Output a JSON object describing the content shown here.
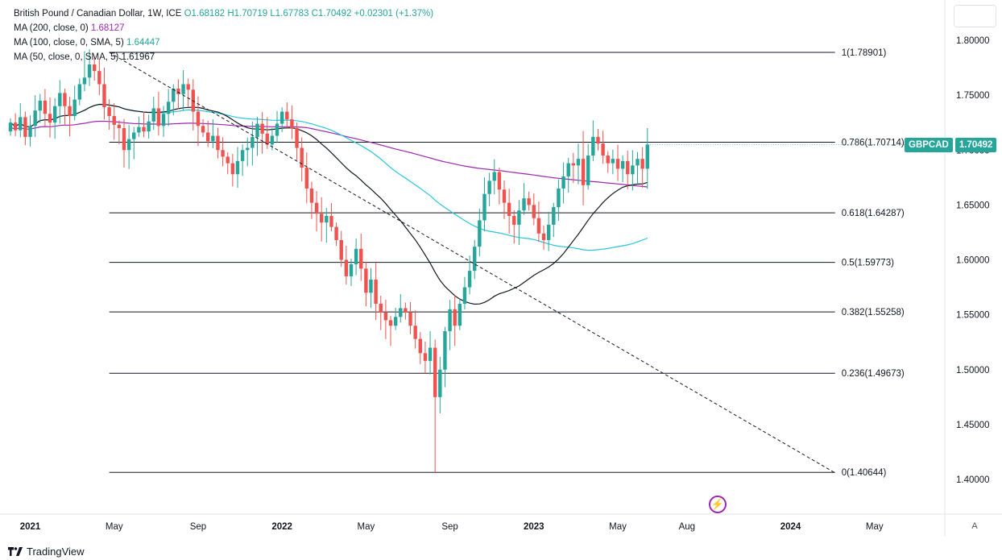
{
  "legend": {
    "title": "British Pound / Canadian Dollar, 1W, ICE",
    "open": "O1.68182",
    "high": "H1.70719",
    "low": "L1.67783",
    "close": "C1.70492",
    "change": "+0.02301 (+1.37%)",
    "ma200_label": "MA (200, close, 0)",
    "ma200_value": "1.68127",
    "ma100_label": "MA (100, close, 0, SMA, 5)",
    "ma100_value": "1.64447",
    "ma50_label": "MA (50, close, 0, SMA, 5)",
    "ma50_value": "1.61967"
  },
  "price_tag": {
    "symbol": "GBPCAD",
    "value": "1.70492"
  },
  "branding": {
    "name": "TradingView"
  },
  "auto_button": "A",
  "colors": {
    "up": "#26a69a",
    "down": "#ef5350",
    "ma200": "#9c27b0",
    "ma100": "#26c6da",
    "ma50": "#131722"
  },
  "chart_data": {
    "type": "candlestick",
    "title": "British Pound / Canadian Dollar, 1W, ICE",
    "ylim": [
      1.38,
      1.83
    ],
    "y_ticks": [
      "1.80000",
      "1.75000",
      "1.70000",
      "1.65000",
      "1.60000",
      "1.55000",
      "1.50000",
      "1.45000",
      "1.40000"
    ],
    "x_ticks": [
      {
        "label": "2021",
        "week": 4
      },
      {
        "label": "May",
        "week": 21
      },
      {
        "label": "Sep",
        "week": 38
      },
      {
        "label": "2022",
        "week": 55
      },
      {
        "label": "May",
        "week": 72
      },
      {
        "label": "Sep",
        "week": 89
      },
      {
        "label": "2023",
        "week": 106
      },
      {
        "label": "May",
        "week": 123
      },
      {
        "label": "Aug",
        "week": 137
      },
      {
        "label": "2024",
        "week": 158
      },
      {
        "label": "May",
        "week": 175
      }
    ],
    "fib_levels": [
      {
        "label": "1(1.78901)",
        "value": 1.78901
      },
      {
        "label": "0.786(1.70714)",
        "value": 1.70714
      },
      {
        "label": "0.618(1.64287)",
        "value": 1.64287
      },
      {
        "label": "0.5(1.59773)",
        "value": 1.59773
      },
      {
        "label": "0.382(1.55258)",
        "value": 1.55258
      },
      {
        "label": "0.236(1.49673)",
        "value": 1.49673
      },
      {
        "label": "0(1.40644)",
        "value": 1.40644
      }
    ],
    "fib_start_week": 20,
    "trendline": {
      "start": [
        20,
        1.789
      ],
      "end": [
        167,
        1.406
      ]
    },
    "closes": [
      1.725,
      1.718,
      1.73,
      1.712,
      1.722,
      1.736,
      1.745,
      1.733,
      1.725,
      1.74,
      1.752,
      1.74,
      1.731,
      1.746,
      1.76,
      1.766,
      1.778,
      1.772,
      1.76,
      1.739,
      1.731,
      1.723,
      1.72,
      1.7,
      1.71,
      1.716,
      1.721,
      1.717,
      1.726,
      1.738,
      1.722,
      1.733,
      1.744,
      1.756,
      1.751,
      1.76,
      1.755,
      1.735,
      1.722,
      1.716,
      1.708,
      1.713,
      1.7,
      1.694,
      1.688,
      1.678,
      1.69,
      1.7,
      1.702,
      1.712,
      1.724,
      1.715,
      1.705,
      1.713,
      1.724,
      1.735,
      1.728,
      1.72,
      1.702,
      1.684,
      1.665,
      1.652,
      1.642,
      1.634,
      1.64,
      1.63,
      1.618,
      1.6,
      1.585,
      1.596,
      1.61,
      1.592,
      1.57,
      1.582,
      1.56,
      1.552,
      1.545,
      1.54,
      1.548,
      1.556,
      1.552,
      1.54,
      1.528,
      1.515,
      1.508,
      1.52,
      1.475,
      1.5,
      1.535,
      1.555,
      1.54,
      1.56,
      1.575,
      1.59,
      1.612,
      1.636,
      1.66,
      1.672,
      1.68,
      1.664,
      1.652,
      1.64,
      1.632,
      1.645,
      1.656,
      1.65,
      1.638,
      1.624,
      1.618,
      1.632,
      1.648,
      1.665,
      1.676,
      1.688,
      1.686,
      1.692,
      1.668,
      1.695,
      1.712,
      1.706,
      1.695,
      1.688,
      1.692,
      1.683,
      1.69,
      1.678,
      1.686,
      1.692,
      1.683,
      1.705
    ],
    "ma50": {
      "label": "MA (50, close, 0, SMA, 5)",
      "value": "1.61967"
    },
    "ma100": {
      "label": "MA (100, close, 0, SMA, 5)",
      "value": "1.64447"
    },
    "ma200": {
      "label": "MA (200, close, 0)",
      "value": "1.68127"
    }
  }
}
